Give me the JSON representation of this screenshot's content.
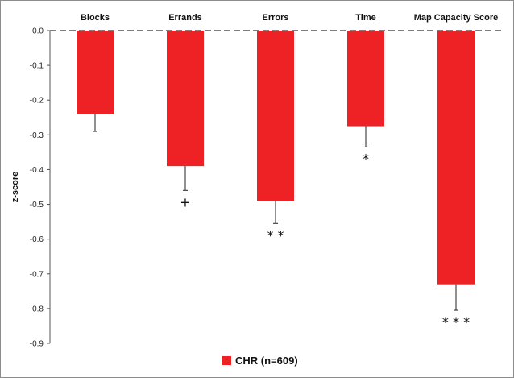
{
  "chart_data": {
    "type": "bar",
    "categories": [
      "Blocks",
      "Errands",
      "Errors",
      "Time",
      "Map Capacity Score"
    ],
    "series": [
      {
        "name": "CHR (n=609)",
        "values": [
          -0.24,
          -0.39,
          -0.49,
          -0.275,
          -0.73
        ],
        "error": [
          0.05,
          0.07,
          0.065,
          0.06,
          0.075
        ],
        "significance": [
          "",
          "+",
          "**",
          "*",
          "***"
        ],
        "color": "#ee2225"
      }
    ],
    "ylabel": "z-score",
    "ylim": [
      -0.9,
      0.0
    ],
    "yticks": [
      "0.0",
      "-0.1",
      "-0.2",
      "-0.3",
      "-0.4",
      "-0.5",
      "-0.6",
      "-0.7",
      "-0.8",
      "-0.9"
    ],
    "grid": false,
    "legend": "bottom-center"
  }
}
